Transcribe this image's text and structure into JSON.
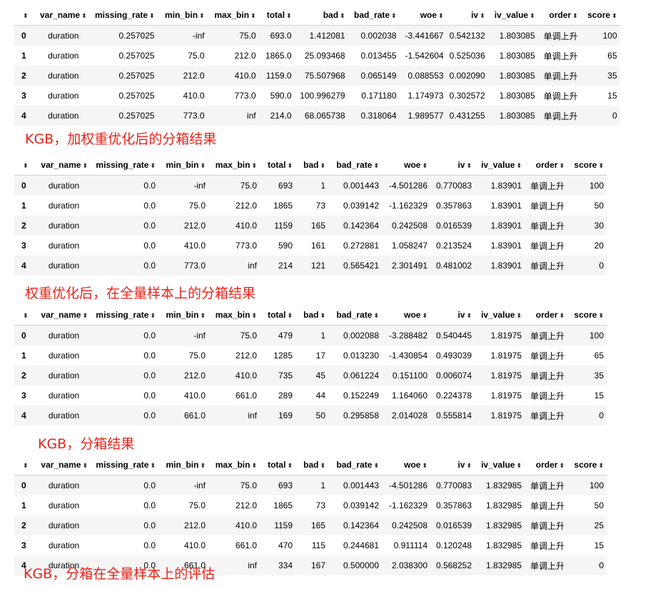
{
  "headers": [
    "",
    "var_name",
    "missing_rate",
    "min_bin",
    "max_bin",
    "total",
    "bad",
    "bad_rate",
    "woe",
    "iv",
    "iv_value",
    "order",
    "score"
  ],
  "sort_glyph": "⬍",
  "tables": [
    {
      "rows": [
        [
          "0",
          "duration",
          "0.257025",
          "-inf",
          "75.0",
          "693.0",
          "1.412081",
          "0.002038",
          "-3.441667",
          "0.542132",
          "1.803085",
          "单调上升",
          "100"
        ],
        [
          "1",
          "duration",
          "0.257025",
          "75.0",
          "212.0",
          "1865.0",
          "25.093468",
          "0.013455",
          "-1.542604",
          "0.525036",
          "1.803085",
          "单调上升",
          "65"
        ],
        [
          "2",
          "duration",
          "0.257025",
          "212.0",
          "410.0",
          "1159.0",
          "75.507968",
          "0.065149",
          "0.088553",
          "0.002090",
          "1.803085",
          "单调上升",
          "35"
        ],
        [
          "3",
          "duration",
          "0.257025",
          "410.0",
          "773.0",
          "590.0",
          "100.996279",
          "0.171180",
          "1.174973",
          "0.302572",
          "1.803085",
          "单调上升",
          "15"
        ],
        [
          "4",
          "duration",
          "0.257025",
          "773.0",
          "inf",
          "214.0",
          "68.065738",
          "0.318064",
          "1.989577",
          "0.431255",
          "1.803085",
          "单调上升",
          "0"
        ]
      ],
      "caption": "KGB，加权重优化后的分箱结果"
    },
    {
      "rows": [
        [
          "0",
          "duration",
          "0.0",
          "-inf",
          "75.0",
          "693",
          "1",
          "0.001443",
          "-4.501286",
          "0.770083",
          "1.83901",
          "单调上升",
          "100"
        ],
        [
          "1",
          "duration",
          "0.0",
          "75.0",
          "212.0",
          "1865",
          "73",
          "0.039142",
          "-1.162329",
          "0.357863",
          "1.83901",
          "单调上升",
          "50"
        ],
        [
          "2",
          "duration",
          "0.0",
          "212.0",
          "410.0",
          "1159",
          "165",
          "0.142364",
          "0.242508",
          "0.016539",
          "1.83901",
          "单调上升",
          "30"
        ],
        [
          "3",
          "duration",
          "0.0",
          "410.0",
          "773.0",
          "590",
          "161",
          "0.272881",
          "1.058247",
          "0.213524",
          "1.83901",
          "单调上升",
          "20"
        ],
        [
          "4",
          "duration",
          "0.0",
          "773.0",
          "inf",
          "214",
          "121",
          "0.565421",
          "2.301491",
          "0.481002",
          "1.83901",
          "单调上升",
          "0"
        ]
      ],
      "caption": "权重优化后，在全量样本上的分箱结果"
    },
    {
      "rows": [
        [
          "0",
          "duration",
          "0.0",
          "-inf",
          "75.0",
          "479",
          "1",
          "0.002088",
          "-3.288482",
          "0.540445",
          "1.81975",
          "单调上升",
          "100"
        ],
        [
          "1",
          "duration",
          "0.0",
          "75.0",
          "212.0",
          "1285",
          "17",
          "0.013230",
          "-1.430854",
          "0.493039",
          "1.81975",
          "单调上升",
          "65"
        ],
        [
          "2",
          "duration",
          "0.0",
          "212.0",
          "410.0",
          "735",
          "45",
          "0.061224",
          "0.151100",
          "0.006074",
          "1.81975",
          "单调上升",
          "35"
        ],
        [
          "3",
          "duration",
          "0.0",
          "410.0",
          "661.0",
          "289",
          "44",
          "0.152249",
          "1.164060",
          "0.224378",
          "1.81975",
          "单调上升",
          "15"
        ],
        [
          "4",
          "duration",
          "0.0",
          "661.0",
          "inf",
          "169",
          "50",
          "0.295858",
          "2.014028",
          "0.555814",
          "1.81975",
          "单调上升",
          "0"
        ]
      ],
      "caption": "KGB，分箱结果"
    },
    {
      "rows": [
        [
          "0",
          "duration",
          "0.0",
          "-inf",
          "75.0",
          "693",
          "1",
          "0.001443",
          "-4.501286",
          "0.770083",
          "1.832985",
          "单调上升",
          "100"
        ],
        [
          "1",
          "duration",
          "0.0",
          "75.0",
          "212.0",
          "1865",
          "73",
          "0.039142",
          "-1.162329",
          "0.357863",
          "1.832985",
          "单调上升",
          "50"
        ],
        [
          "2",
          "duration",
          "0.0",
          "212.0",
          "410.0",
          "1159",
          "165",
          "0.142364",
          "0.242508",
          "0.016539",
          "1.832985",
          "单调上升",
          "25"
        ],
        [
          "3",
          "duration",
          "0.0",
          "410.0",
          "661.0",
          "470",
          "115",
          "0.244681",
          "0.911114",
          "0.120248",
          "1.832985",
          "单调上升",
          "15"
        ],
        [
          "4",
          "duration",
          "0.0",
          "661.0",
          "inf",
          "334",
          "167",
          "0.500000",
          "2.038300",
          "0.568252",
          "1.832985",
          "单调上升",
          "0"
        ]
      ],
      "caption": "KGB，分箱在全量样本上的评估"
    }
  ]
}
